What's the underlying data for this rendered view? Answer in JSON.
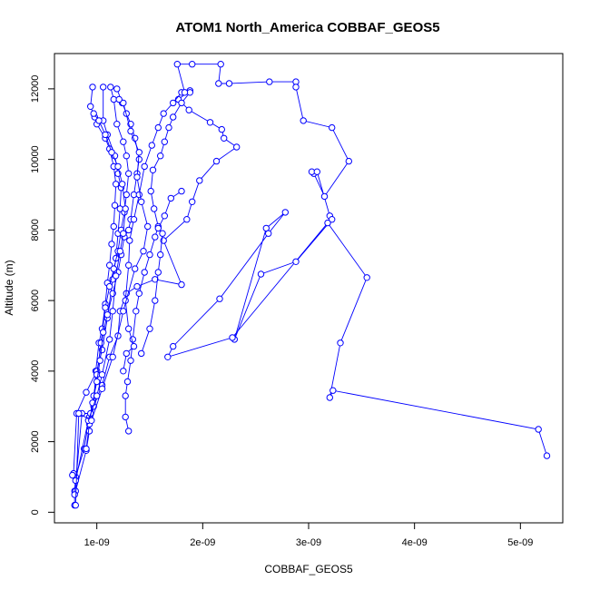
{
  "chart_data": {
    "type": "scatter",
    "title": "ATOM1 North_America COBBAF_GEOS5",
    "xlabel": "COBBAF_GEOS5",
    "ylabel": "Altitude (m)",
    "xlim": [
      6e-10,
      5.4e-09
    ],
    "ylim": [
      -300,
      13000
    ],
    "x_ticks": [
      1e-09,
      2e-09,
      3e-09,
      4e-09,
      5e-09
    ],
    "x_tick_labels": [
      "1e-09",
      "2e-09",
      "3e-09",
      "4e-09",
      "5e-09"
    ],
    "y_ticks": [
      0,
      2000,
      4000,
      6000,
      8000,
      10000,
      12000
    ],
    "y_tick_labels": [
      "0",
      "2000",
      "4000",
      "6000",
      "8000",
      "10000",
      "12000"
    ],
    "grid": false,
    "legend": "none",
    "color": "#0000ff",
    "marker": "open-circle",
    "series": [
      {
        "points": [
          [
            7.9e-10,
            200
          ],
          [
            7.9e-10,
            600
          ],
          [
            8e-10,
            1000
          ],
          [
            8.8e-10,
            1800
          ],
          [
            9.3e-10,
            2700
          ],
          [
            1.05e-09,
            3600
          ],
          [
            1.12e-09,
            4400
          ],
          [
            1.2e-09,
            5000
          ],
          [
            1.22e-09,
            5700
          ],
          [
            1.28e-09,
            6200
          ],
          [
            1.38e-09,
            6400
          ],
          [
            1.55e-09,
            6600
          ],
          [
            1.8e-09,
            6450
          ],
          [
            1.63e-09,
            7700
          ],
          [
            1.85e-09,
            8300
          ],
          [
            1.9e-09,
            8800
          ],
          [
            1.97e-09,
            9400
          ],
          [
            2.13e-09,
            9950
          ],
          [
            2.32e-09,
            10350
          ],
          [
            2.2e-09,
            10600
          ],
          [
            2.18e-09,
            10850
          ],
          [
            2.07e-09,
            11050
          ],
          [
            1.87e-09,
            11400
          ],
          [
            1.77e-09,
            11700
          ],
          [
            1.88e-09,
            11950
          ]
        ]
      },
      {
        "points": [
          [
            8e-10,
            600
          ],
          [
            9e-10,
            1750
          ],
          [
            9.3e-10,
            2300
          ],
          [
            9.7e-10,
            3000
          ],
          [
            9.9e-10,
            4000
          ],
          [
            1.02e-09,
            4800
          ],
          [
            1.05e-09,
            5200
          ],
          [
            1.08e-09,
            5900
          ],
          [
            1.1e-09,
            6500
          ],
          [
            1.12e-09,
            7000
          ],
          [
            1.14e-09,
            7600
          ],
          [
            1.16e-09,
            8100
          ],
          [
            1.17e-09,
            8700
          ],
          [
            1.18e-09,
            9300
          ],
          [
            1.16e-09,
            9800
          ],
          [
            1.12e-09,
            10300
          ],
          [
            1.08e-09,
            10600
          ],
          [
            1e-09,
            11000
          ],
          [
            9.8e-10,
            11200
          ],
          [
            9.4e-10,
            11500
          ],
          [
            9.6e-10,
            12050
          ]
        ]
      },
      {
        "points": [
          [
            7.8e-10,
            1100
          ],
          [
            8.1e-10,
            2800
          ],
          [
            9e-10,
            3400
          ],
          [
            1e-09,
            4000
          ],
          [
            1.05e-09,
            4600
          ],
          [
            1.1e-09,
            5500
          ],
          [
            1.15e-09,
            6600
          ],
          [
            1.18e-09,
            7200
          ],
          [
            1.2e-09,
            7900
          ],
          [
            1.22e-09,
            8600
          ],
          [
            1.23e-09,
            9200
          ],
          [
            1.2e-09,
            9600
          ],
          [
            1.17e-09,
            10100
          ],
          [
            1.1e-09,
            10700
          ],
          [
            1.06e-09,
            11100
          ],
          [
            1.06e-09,
            12050
          ]
        ]
      },
      {
        "points": [
          [
            7.9e-10,
            500
          ],
          [
            8.6e-10,
            2800
          ],
          [
            9.4e-10,
            2800
          ],
          [
            9.7e-10,
            3300
          ],
          [
            1e-09,
            3900
          ],
          [
            1.04e-09,
            4800
          ],
          [
            1.08e-09,
            5800
          ],
          [
            1.12e-09,
            6400
          ],
          [
            1.16e-09,
            6900
          ],
          [
            1.2e-09,
            7400
          ],
          [
            1.23e-09,
            8000
          ],
          [
            1.26e-09,
            8500
          ],
          [
            1.28e-09,
            9000
          ],
          [
            1.3e-09,
            9600
          ],
          [
            1.28e-09,
            10100
          ],
          [
            1.25e-09,
            10500
          ],
          [
            1.19e-09,
            11000
          ],
          [
            1.16e-09,
            11700
          ],
          [
            1.13e-09,
            12050
          ]
        ]
      },
      {
        "points": [
          [
            1.3e-09,
            2300
          ],
          [
            1.27e-09,
            2700
          ],
          [
            1.27e-09,
            3300
          ],
          [
            1.29e-09,
            3700
          ],
          [
            1.32e-09,
            4300
          ],
          [
            1.34e-09,
            4900
          ],
          [
            1.37e-09,
            5700
          ],
          [
            1.4e-09,
            6200
          ],
          [
            1.45e-09,
            6800
          ],
          [
            1.5e-09,
            7300
          ],
          [
            1.55e-09,
            7800
          ],
          [
            1.58e-09,
            8100
          ],
          [
            1.54e-09,
            8600
          ],
          [
            1.51e-09,
            9100
          ],
          [
            1.53e-09,
            9700
          ],
          [
            1.6e-09,
            10100
          ],
          [
            1.64e-09,
            10500
          ],
          [
            1.68e-09,
            10900
          ],
          [
            1.72e-09,
            11200
          ],
          [
            1.8e-09,
            11600
          ],
          [
            1.88e-09,
            11900
          ]
        ]
      },
      {
        "points": [
          [
            9e-10,
            1800
          ],
          [
            9.3e-10,
            2500
          ],
          [
            9.6e-10,
            3100
          ],
          [
            1e-09,
            3700
          ],
          [
            1.03e-09,
            4300
          ],
          [
            1.06e-09,
            5100
          ],
          [
            1.1e-09,
            5600
          ],
          [
            1.15e-09,
            6200
          ],
          [
            1.2e-09,
            6800
          ],
          [
            1.23e-09,
            7300
          ],
          [
            1.26e-09,
            7800
          ],
          [
            1.3e-09,
            8000
          ],
          [
            1.32e-09,
            8300
          ],
          [
            1.35e-09,
            9000
          ],
          [
            1.38e-09,
            9600
          ],
          [
            1.4e-09,
            10000
          ],
          [
            1.36e-09,
            10600
          ],
          [
            1.32e-09,
            11000
          ],
          [
            1.28e-09,
            11300
          ],
          [
            1.24e-09,
            11600
          ],
          [
            1.19e-09,
            12000
          ]
        ]
      },
      {
        "points": [
          [
            1.25e-09,
            4000
          ],
          [
            1.28e-09,
            4500
          ],
          [
            1.35e-09,
            4700
          ],
          [
            1.3e-09,
            5200
          ],
          [
            1.27e-09,
            6000
          ],
          [
            1.3e-09,
            7000
          ],
          [
            1.31e-09,
            7700
          ],
          [
            1.35e-09,
            8300
          ],
          [
            1.4e-09,
            9000
          ],
          [
            1.45e-09,
            9800
          ],
          [
            1.52e-09,
            10400
          ],
          [
            1.58e-09,
            10900
          ],
          [
            1.63e-09,
            11300
          ],
          [
            1.72e-09,
            11600
          ],
          [
            1.8e-09,
            11900
          ]
        ]
      },
      {
        "points": [
          [
            1.42e-09,
            4500
          ],
          [
            1.5e-09,
            5200
          ],
          [
            1.55e-09,
            6000
          ],
          [
            1.58e-09,
            6800
          ],
          [
            1.6e-09,
            7300
          ],
          [
            1.62e-09,
            7900
          ],
          [
            1.58e-09,
            8050
          ],
          [
            1.64e-09,
            8400
          ],
          [
            1.7e-09,
            8900
          ],
          [
            1.8e-09,
            9100
          ]
        ]
      },
      {
        "points": [
          [
            1.83e-09,
            11900
          ],
          [
            1.76e-09,
            12700
          ],
          [
            1.9e-09,
            12700
          ],
          [
            2.17e-09,
            12700
          ],
          [
            2.15e-09,
            12150
          ],
          [
            2.25e-09,
            12150
          ],
          [
            2.63e-09,
            12200
          ],
          [
            2.88e-09,
            12200
          ],
          [
            2.88e-09,
            12050
          ],
          [
            2.95e-09,
            11100
          ],
          [
            3.22e-09,
            10900
          ],
          [
            3.38e-09,
            9950
          ],
          [
            3.15e-09,
            8950
          ],
          [
            3.05e-09,
            9600
          ],
          [
            3.03e-09,
            9650
          ],
          [
            3.08e-09,
            9650
          ],
          [
            3.2e-09,
            8400
          ],
          [
            3.22e-09,
            8300
          ],
          [
            2.88e-09,
            7100
          ],
          [
            2.55e-09,
            6750
          ],
          [
            2.3e-09,
            4900
          ],
          [
            2.6e-09,
            8050
          ],
          [
            2.78e-09,
            8500
          ],
          [
            2.62e-09,
            7900
          ],
          [
            2.16e-09,
            6050
          ],
          [
            1.72e-09,
            4700
          ],
          [
            1.67e-09,
            4400
          ],
          [
            2.28e-09,
            4950
          ],
          [
            3.18e-09,
            8200
          ],
          [
            3.55e-09,
            6650
          ],
          [
            3.3e-09,
            4800
          ],
          [
            3.2e-09,
            3250
          ],
          [
            3.23e-09,
            3450
          ],
          [
            5.17e-09,
            2350
          ],
          [
            5.25e-09,
            1600
          ]
        ]
      },
      {
        "points": [
          [
            7.7e-10,
            1050
          ],
          [
            8e-10,
            900
          ],
          [
            9.2e-10,
            2600
          ],
          [
            1e-09,
            3300
          ],
          [
            1.05e-09,
            3900
          ],
          [
            1.12e-09,
            4900
          ],
          [
            1.15e-09,
            5700
          ],
          [
            1.18e-09,
            6700
          ],
          [
            1.22e-09,
            7400
          ],
          [
            1.25e-09,
            7900
          ],
          [
            1.27e-09,
            8600
          ],
          [
            1.24e-09,
            9300
          ],
          [
            1.2e-09,
            9800
          ],
          [
            1.14e-09,
            10200
          ],
          [
            1.08e-09,
            10700
          ],
          [
            1.02e-09,
            11100
          ],
          [
            9.7e-10,
            11300
          ]
        ]
      },
      {
        "points": [
          [
            8e-10,
            200
          ],
          [
            8.3e-10,
            2800
          ],
          [
            9.5e-10,
            2600
          ],
          [
            1.05e-09,
            3500
          ],
          [
            1.15e-09,
            4400
          ],
          [
            1.25e-09,
            5700
          ],
          [
            1.36e-09,
            6900
          ],
          [
            1.44e-09,
            7400
          ],
          [
            1.48e-09,
            8100
          ],
          [
            1.42e-09,
            8800
          ],
          [
            1.38e-09,
            9500
          ],
          [
            1.4e-09,
            10200
          ],
          [
            1.32e-09,
            10800
          ],
          [
            1.25e-09,
            11600
          ],
          [
            1.21e-09,
            11700
          ]
        ]
      }
    ]
  }
}
